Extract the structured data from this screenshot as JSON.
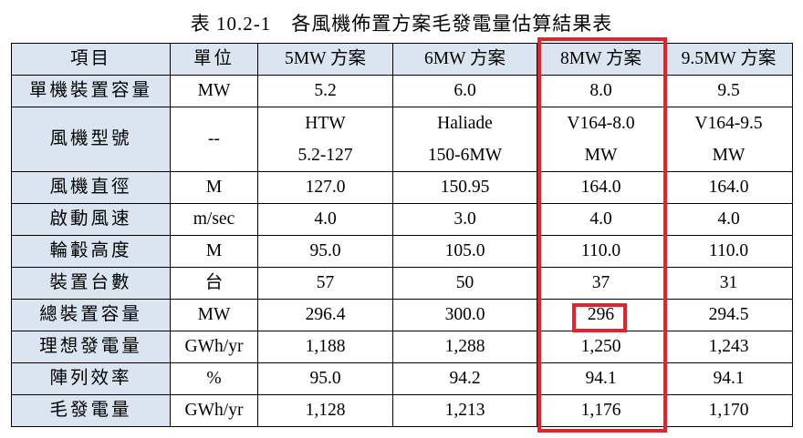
{
  "title": "表 10.2-1　各風機佈置方案毛發電量估算結果表",
  "table": {
    "header": [
      "項目",
      "單位",
      "5MW 方案",
      "6MW 方案",
      "8MW 方案",
      "9.5MW 方案"
    ],
    "rows": [
      [
        "單機裝置容量",
        "MW",
        "5.2",
        "6.0",
        "8.0",
        "9.5"
      ],
      [
        "風機型號",
        "--",
        [
          "HTW",
          "5.2-127"
        ],
        [
          "Haliade",
          "150-6MW"
        ],
        [
          "V164-8.0",
          "MW"
        ],
        [
          "V164-9.5",
          "MW"
        ]
      ],
      [
        "風機直徑",
        "M",
        "127.0",
        "150.95",
        "164.0",
        "164.0"
      ],
      [
        "啟動風速",
        "m/sec",
        "4.0",
        "3.0",
        "4.0",
        "4.0"
      ],
      [
        "輪轂高度",
        "M",
        "95.0",
        "105.0",
        "110.0",
        "110.0"
      ],
      [
        "裝置台數",
        "台",
        "57",
        "50",
        "37",
        "31"
      ],
      [
        "總裝置容量",
        "MW",
        "296.4",
        "300.0",
        "296",
        "294.5"
      ],
      [
        "理想發電量",
        "GWh/yr",
        "1,188",
        "1,288",
        "1,250",
        "1,243"
      ],
      [
        "陣列效率",
        "%",
        "95.0",
        "94.2",
        "94.1",
        "94.1"
      ],
      [
        "毛發電量",
        "GWh/yr",
        "1,128",
        "1,213",
        "1,176",
        "1,170"
      ]
    ]
  }
}
